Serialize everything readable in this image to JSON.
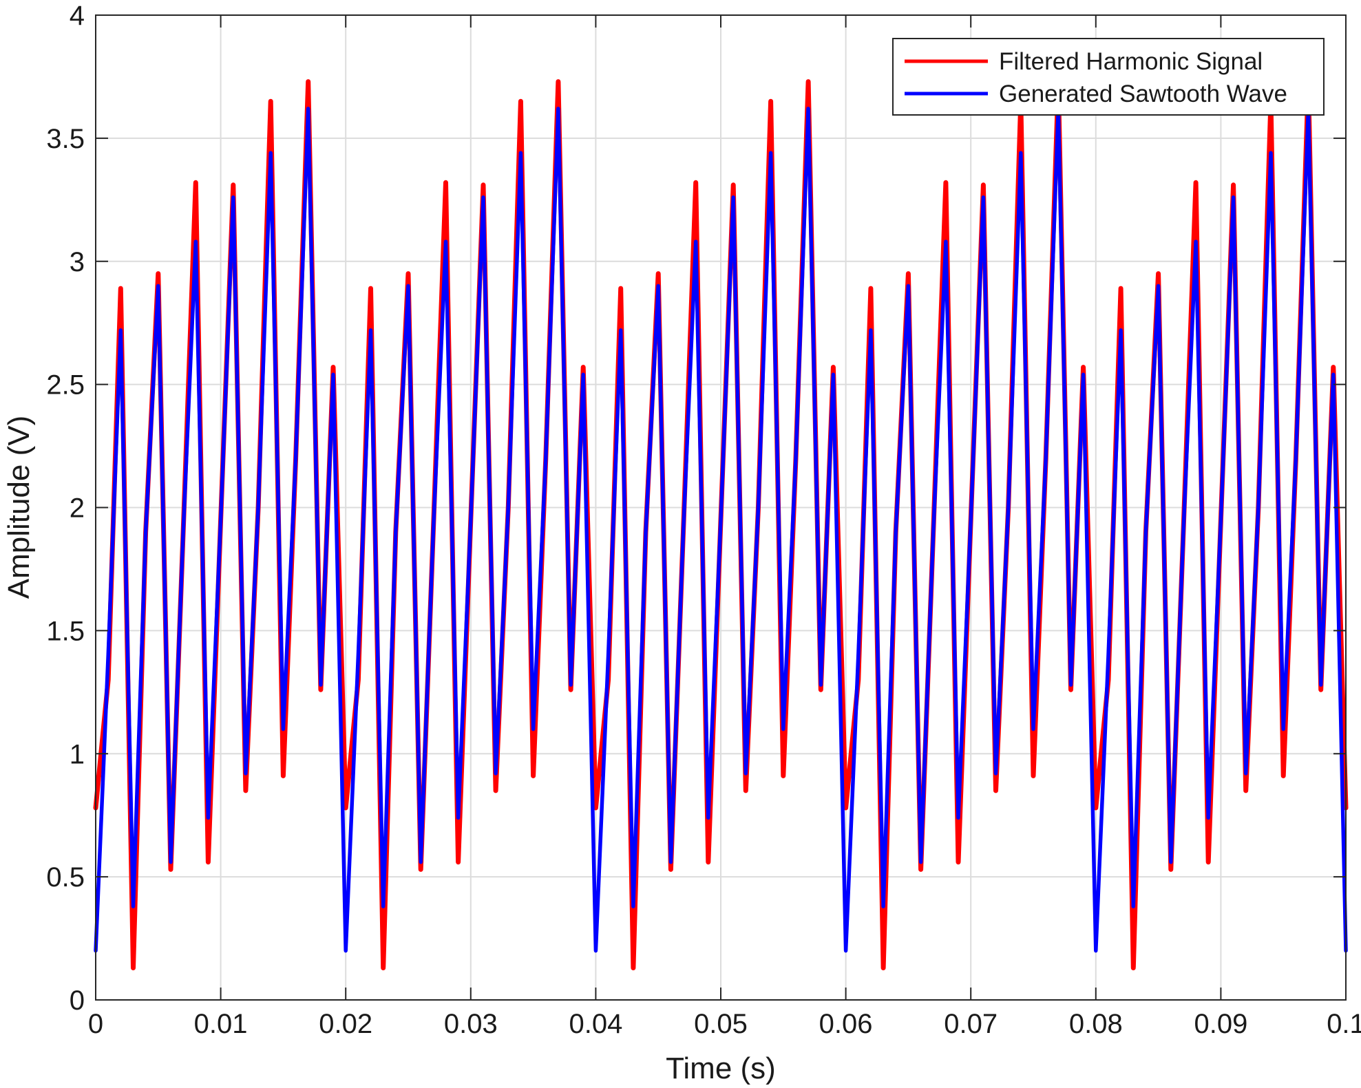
{
  "chart_data": {
    "type": "line",
    "title": "",
    "xlabel": "Time (s)",
    "ylabel": "Amplitude (V)",
    "xlim": [
      0,
      0.1
    ],
    "ylim": [
      0,
      4
    ],
    "xticks": [
      0,
      0.01,
      0.02,
      0.03,
      0.04,
      0.05,
      0.06,
      0.07,
      0.08,
      0.09,
      0.1
    ],
    "xtick_labels": [
      "0",
      "0.01",
      "0.02",
      "0.03",
      "0.04",
      "0.05",
      "0.06",
      "0.07",
      "0.08",
      "0.09",
      "0.1"
    ],
    "yticks": [
      0,
      0.5,
      1,
      1.5,
      2,
      2.5,
      3,
      3.5,
      4
    ],
    "ytick_labels": [
      "0",
      "0.5",
      "1",
      "1.5",
      "2",
      "2.5",
      "3",
      "3.5",
      "4"
    ],
    "grid": true,
    "legend_position": "top-right",
    "series": [
      {
        "name": "Filtered Harmonic Signal",
        "color": "#ff0000",
        "x": [
          0,
          0.001,
          0.002,
          0.003,
          0.004,
          0.005,
          0.006,
          0.007,
          0.008,
          0.009,
          0.01,
          0.011,
          0.012,
          0.013,
          0.014,
          0.015,
          0.016,
          0.017,
          0.018,
          0.019,
          0.02,
          0.021,
          0.022,
          0.023,
          0.024,
          0.025,
          0.026,
          0.027,
          0.028,
          0.029,
          0.03,
          0.031,
          0.032,
          0.033,
          0.034,
          0.035,
          0.036,
          0.037,
          0.038,
          0.039,
          0.04,
          0.041,
          0.042,
          0.043,
          0.044,
          0.045,
          0.046,
          0.047,
          0.048,
          0.049,
          0.05,
          0.051,
          0.052,
          0.053,
          0.054,
          0.055,
          0.056,
          0.057,
          0.058,
          0.059,
          0.06,
          0.061,
          0.062,
          0.063,
          0.064,
          0.065,
          0.066,
          0.067,
          0.068,
          0.069,
          0.07,
          0.071,
          0.072,
          0.073,
          0.074,
          0.075,
          0.076,
          0.077,
          0.078,
          0.079,
          0.08,
          0.081,
          0.082,
          0.083,
          0.084,
          0.085,
          0.086,
          0.087,
          0.088,
          0.089,
          0.09,
          0.091,
          0.092,
          0.093,
          0.094,
          0.095,
          0.096,
          0.097,
          0.098,
          0.099,
          0.1
        ],
        "values": [
          0.78,
          1.3,
          2.89,
          0.13,
          1.9,
          2.95,
          0.53,
          1.9,
          3.32,
          0.56,
          1.95,
          3.31,
          0.85,
          2.0,
          3.65,
          0.91,
          2.2,
          3.73,
          1.26,
          2.57,
          0.78,
          1.3,
          2.89,
          0.13,
          1.9,
          2.95,
          0.53,
          1.9,
          3.32,
          0.56,
          1.95,
          3.31,
          0.85,
          2.0,
          3.65,
          0.91,
          2.2,
          3.73,
          1.26,
          2.57,
          0.78,
          1.3,
          2.89,
          0.13,
          1.9,
          2.95,
          0.53,
          1.9,
          3.32,
          0.56,
          1.95,
          3.31,
          0.85,
          2.0,
          3.65,
          0.91,
          2.2,
          3.73,
          1.26,
          2.57,
          0.78,
          1.3,
          2.89,
          0.13,
          1.9,
          2.95,
          0.53,
          1.9,
          3.32,
          0.56,
          1.95,
          3.31,
          0.85,
          2.0,
          3.65,
          0.91,
          2.2,
          3.73,
          1.26,
          2.57,
          0.78,
          1.3,
          2.89,
          0.13,
          1.9,
          2.95,
          0.53,
          1.9,
          3.32,
          0.56,
          1.95,
          3.31,
          0.85,
          2.0,
          3.65,
          0.91,
          2.2,
          3.73,
          1.26,
          2.57,
          0.78
        ]
      },
      {
        "name": "Generated Sawtooth Wave",
        "color": "#0000ff",
        "x": [
          0,
          0.001,
          0.002,
          0.003,
          0.004,
          0.005,
          0.006,
          0.007,
          0.008,
          0.009,
          0.01,
          0.011,
          0.012,
          0.013,
          0.014,
          0.015,
          0.016,
          0.017,
          0.018,
          0.019,
          0.02,
          0.021,
          0.022,
          0.023,
          0.024,
          0.025,
          0.026,
          0.027,
          0.028,
          0.029,
          0.03,
          0.031,
          0.032,
          0.033,
          0.034,
          0.035,
          0.036,
          0.037,
          0.038,
          0.039,
          0.04,
          0.041,
          0.042,
          0.043,
          0.044,
          0.045,
          0.046,
          0.047,
          0.048,
          0.049,
          0.05,
          0.051,
          0.052,
          0.053,
          0.054,
          0.055,
          0.056,
          0.057,
          0.058,
          0.059,
          0.06,
          0.061,
          0.062,
          0.063,
          0.064,
          0.065,
          0.066,
          0.067,
          0.068,
          0.069,
          0.07,
          0.071,
          0.072,
          0.073,
          0.074,
          0.075,
          0.076,
          0.077,
          0.078,
          0.079,
          0.08,
          0.081,
          0.082,
          0.083,
          0.084,
          0.085,
          0.086,
          0.087,
          0.088,
          0.089,
          0.09,
          0.091,
          0.092,
          0.093,
          0.094,
          0.095,
          0.096,
          0.097,
          0.098,
          0.099,
          0.1
        ],
        "values": [
          0.2,
          1.4,
          2.72,
          0.38,
          1.9,
          2.9,
          0.56,
          1.9,
          3.08,
          0.74,
          1.95,
          3.26,
          0.92,
          2.0,
          3.44,
          1.1,
          2.2,
          3.62,
          1.28,
          2.54,
          0.2,
          1.4,
          2.72,
          0.38,
          1.9,
          2.9,
          0.56,
          1.9,
          3.08,
          0.74,
          1.95,
          3.26,
          0.92,
          2.0,
          3.44,
          1.1,
          2.2,
          3.62,
          1.28,
          2.54,
          0.2,
          1.4,
          2.72,
          0.38,
          1.9,
          2.9,
          0.56,
          1.9,
          3.08,
          0.74,
          1.95,
          3.26,
          0.92,
          2.0,
          3.44,
          1.1,
          2.2,
          3.62,
          1.28,
          2.54,
          0.2,
          1.4,
          2.72,
          0.38,
          1.9,
          2.9,
          0.56,
          1.9,
          3.08,
          0.74,
          1.95,
          3.26,
          0.92,
          2.0,
          3.44,
          1.1,
          2.2,
          3.62,
          1.28,
          2.54,
          0.2,
          1.4,
          2.72,
          0.38,
          1.9,
          2.9,
          0.56,
          1.9,
          3.08,
          0.74,
          1.95,
          3.26,
          0.92,
          2.0,
          3.44,
          1.1,
          2.2,
          3.62,
          1.28,
          2.54,
          0.2
        ]
      }
    ]
  }
}
